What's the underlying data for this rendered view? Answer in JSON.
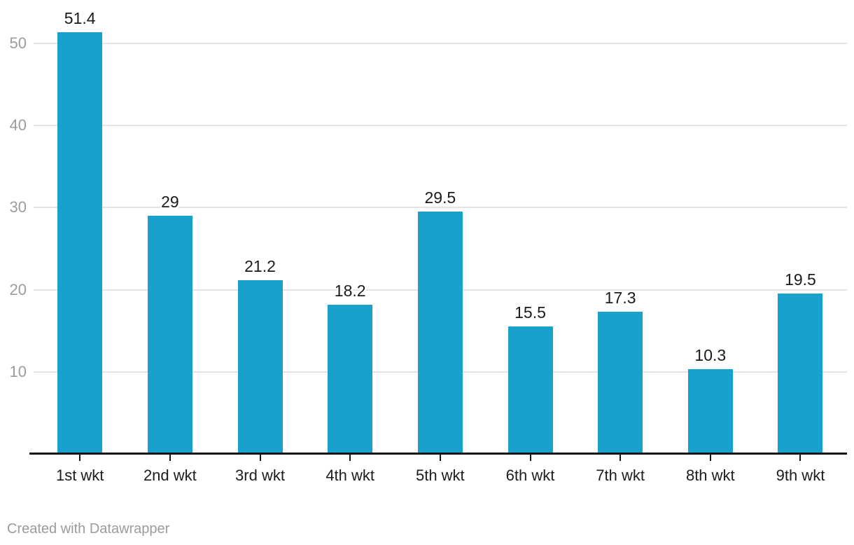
{
  "chart_data": {
    "type": "bar",
    "title": "",
    "xlabel": "",
    "ylabel": "",
    "categories": [
      "1st wkt",
      "2nd wkt",
      "3rd wkt",
      "4th wkt",
      "5th wkt",
      "6th wkt",
      "7th wkt",
      "8th wkt",
      "9th wkt"
    ],
    "values": [
      51.4,
      29,
      21.2,
      18.2,
      29.5,
      15.5,
      17.3,
      10.3,
      19.5
    ],
    "value_labels": [
      "51.4",
      "29",
      "21.2",
      "18.2",
      "29.5",
      "15.5",
      "17.3",
      "10.3",
      "19.5"
    ],
    "yticks": [
      10,
      20,
      30,
      40,
      50
    ],
    "ylim": [
      0,
      55.3
    ],
    "grid": true,
    "legend_position": "none",
    "bar_color": "#18a1cd"
  },
  "colors": {
    "bar": "#18a1cd",
    "grid": "#e3e3e3",
    "axis": "#161616",
    "y_tick_label": "#9c9c9c",
    "x_tick_label": "#1d1d1d",
    "value_label": "#1a1a1a",
    "credit": "#9b9b9b"
  },
  "footer": {
    "credit": "Created with Datawrapper"
  }
}
